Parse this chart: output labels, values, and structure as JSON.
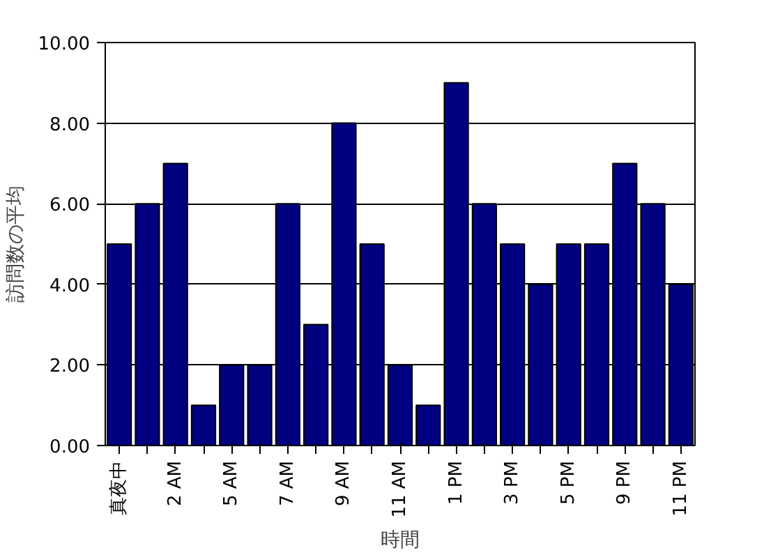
{
  "chart_data": {
    "type": "bar",
    "xlabel": "時間",
    "ylabel": "訪問数の平均",
    "categories": [
      "真夜中",
      null,
      "2 AM",
      null,
      "5 AM",
      null,
      "7 AM",
      null,
      "9 AM",
      null,
      "11 AM",
      null,
      "1 PM",
      null,
      "3 PM",
      null,
      "5 PM",
      null,
      "9 PM",
      null,
      "11 PM"
    ],
    "values": [
      5,
      6,
      7,
      1,
      2,
      2,
      6,
      3,
      8,
      5,
      2,
      1,
      9,
      6,
      5,
      4,
      5,
      5,
      7,
      6,
      4
    ],
    "color": "#000080",
    "ylim": [
      0,
      10
    ],
    "yticks": [
      {
        "value": 0,
        "label": "0.00"
      },
      {
        "value": 2,
        "label": "2.00"
      },
      {
        "value": 4,
        "label": "4.00"
      },
      {
        "value": 6,
        "label": "6.00"
      },
      {
        "value": 8,
        "label": "8.00"
      },
      {
        "value": 10,
        "label": "10.00"
      }
    ],
    "grid": "y"
  }
}
